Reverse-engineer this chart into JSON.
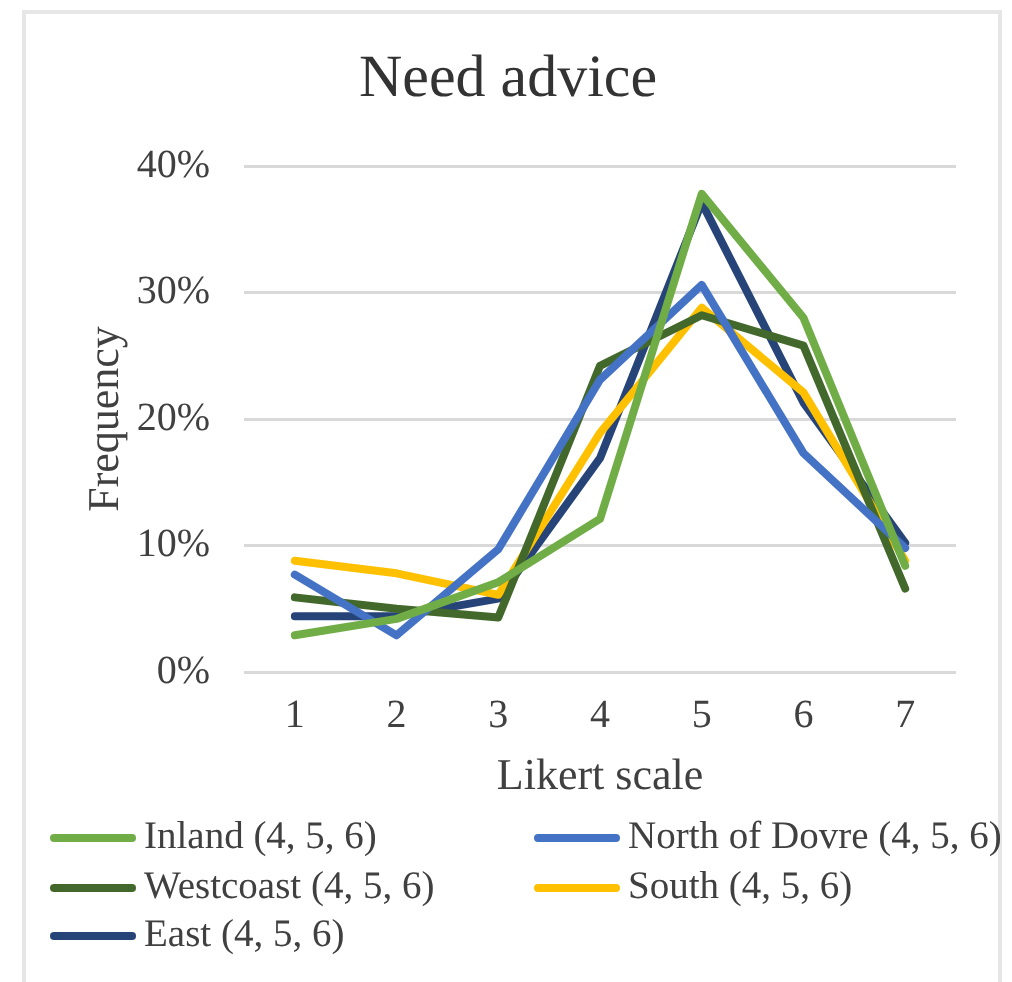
{
  "chart_data": {
    "type": "line",
    "title": "Need advice",
    "xlabel": "Likert scale",
    "ylabel": "Frequency",
    "categories": [
      "1",
      "2",
      "3",
      "4",
      "5",
      "6",
      "7"
    ],
    "series": [
      {
        "name": "Inland (4, 5, 6)",
        "color": "#70ad47",
        "values": [
          2.9,
          4.2,
          7.1,
          12.1,
          37.8,
          28.0,
          8.4
        ]
      },
      {
        "name": "North of Dovre (4, 5, 6)",
        "color": "#4472c4",
        "values": [
          7.7,
          2.9,
          9.7,
          23.1,
          30.6,
          17.3,
          9.8
        ]
      },
      {
        "name": "Westcoast (4, 5, 6)",
        "color": "#43682b",
        "values": [
          5.9,
          5.0,
          4.3,
          24.2,
          28.2,
          25.8,
          6.6
        ]
      },
      {
        "name": "South (4, 5, 6)",
        "color": "#ffc000",
        "values": [
          8.8,
          7.8,
          6.1,
          18.9,
          28.8,
          22.1,
          8.8
        ]
      },
      {
        "name": "East (4, 5, 6)",
        "color": "#264478",
        "values": [
          4.4,
          4.4,
          5.8,
          16.9,
          37.1,
          21.3,
          10.2
        ]
      }
    ],
    "ylim": [
      0,
      40
    ],
    "yticks": [
      {
        "value": 0,
        "label": "0%"
      },
      {
        "value": 10,
        "label": "10%"
      },
      {
        "value": 20,
        "label": "20%"
      },
      {
        "value": 30,
        "label": "30%"
      },
      {
        "value": 40,
        "label": "40%"
      }
    ],
    "grid": "y",
    "legend": "bottom",
    "marker": "none",
    "line_style": "solid"
  }
}
